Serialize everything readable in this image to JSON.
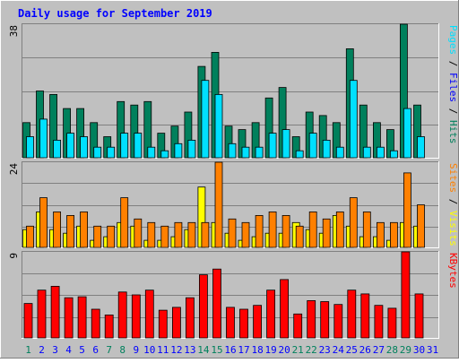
{
  "chart_data": {
    "type": "bar",
    "title": "Daily usage for September 2019",
    "x": [
      "1",
      "2",
      "3",
      "4",
      "5",
      "6",
      "7",
      "8",
      "9",
      "10",
      "11",
      "12",
      "13",
      "14",
      "15",
      "16",
      "17",
      "18",
      "19",
      "20",
      "21",
      "22",
      "23",
      "24",
      "25",
      "26",
      "27",
      "28",
      "29",
      "30",
      "31"
    ],
    "weekend_days": [
      1,
      7,
      8,
      14,
      15,
      21,
      22,
      28,
      29
    ],
    "panels": [
      {
        "name": "hits-files-pages",
        "ymax": 38,
        "ymax_label": "38",
        "ylabel_parts": [
          {
            "text": "Pages",
            "color": "#00e0ff"
          },
          {
            "text": " / ",
            "color": "#000000"
          },
          {
            "text": "Files",
            "color": "#0000ff"
          },
          {
            "text": " / ",
            "color": "#000000"
          },
          {
            "text": "Hits",
            "color": "#00805c"
          }
        ],
        "series": [
          {
            "name": "Hits",
            "color": "#00805c",
            "values": [
              10,
              19,
              18,
              14,
              14,
              10,
              6,
              16,
              15,
              16,
              7,
              9,
              13,
              26,
              30,
              9,
              8,
              10,
              17,
              20,
              6,
              13,
              12,
              10,
              31,
              15,
              10,
              8,
              38,
              15,
              0
            ]
          },
          {
            "name": "Files",
            "color": "#0000ff",
            "values": [
              0,
              0,
              0,
              0,
              0,
              0,
              0,
              0,
              0,
              0,
              0,
              0,
              0,
              0,
              0,
              0,
              0,
              0,
              0,
              0,
              0,
              0,
              0,
              0,
              0,
              0,
              0,
              0,
              0,
              0,
              0
            ]
          },
          {
            "name": "Pages",
            "color": "#00e0ff",
            "values": [
              6,
              11,
              5,
              7,
              6,
              3,
              3,
              7,
              7,
              3,
              2,
              4,
              5,
              22,
              18,
              4,
              3,
              3,
              7,
              8,
              2,
              7,
              5,
              3,
              22,
              3,
              3,
              2,
              14,
              6,
              0
            ]
          }
        ]
      },
      {
        "name": "visits-sites",
        "ymax": 24,
        "ymax_label": "24",
        "ylabel_parts": [
          {
            "text": "Sites",
            "color": "#ff8000"
          },
          {
            "text": " / ",
            "color": "#000000"
          },
          {
            "text": "Visits",
            "color": "#ffff00"
          }
        ],
        "series": [
          {
            "name": "Visits",
            "color": "#ffff00",
            "values": [
              5,
              10,
              5,
              4,
              6,
              2,
              3,
              7,
              6,
              2,
              2,
              3,
              5,
              17,
              7,
              4,
              2,
              3,
              4,
              4,
              7,
              5,
              4,
              9,
              6,
              3,
              3,
              2,
              7,
              6,
              0
            ]
          },
          {
            "name": "Sites",
            "color": "#ff8000",
            "values": [
              6,
              14,
              10,
              9,
              10,
              6,
              6,
              14,
              8,
              7,
              6,
              7,
              7,
              7,
              24,
              8,
              7,
              9,
              10,
              9,
              6,
              10,
              8,
              10,
              14,
              10,
              7,
              7,
              21,
              12,
              0
            ]
          }
        ]
      },
      {
        "name": "kbytes",
        "ymax": 9,
        "ymax_label": "9",
        "ylabel_parts": [
          {
            "text": "KBytes",
            "color": "#ff0000"
          }
        ],
        "series": [
          {
            "name": "KBytes",
            "color": "#ff0000",
            "values": [
              3.6,
              5,
              5.4,
              4.2,
              4.3,
              3,
              2.4,
              4.8,
              4.5,
              5,
              2.9,
              3.2,
              4.2,
              6.6,
              7.2,
              3.2,
              3,
              3.4,
              5,
              6.1,
              2.5,
              3.9,
              3.8,
              3.5,
              5,
              4.6,
              3.4,
              3.1,
              9,
              4.6,
              0
            ]
          }
        ]
      }
    ],
    "colors": {
      "background": "#c0c0c0",
      "plot": "#c0c0c0",
      "frame_light": "#ffffff",
      "frame_dark": "#808080",
      "title": "#0000ff",
      "weekday_label": "#0000ff",
      "weekend_label": "#00805c",
      "bar_outline": "#000000"
    }
  }
}
